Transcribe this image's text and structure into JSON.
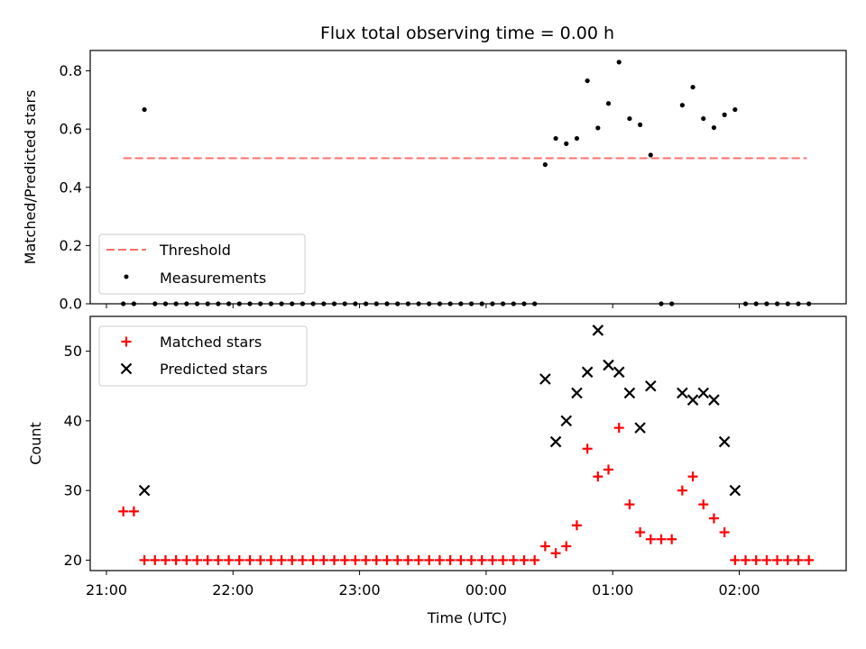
{
  "chart_data": [
    {
      "type": "scatter",
      "panel": "top",
      "title": "Flux total observing time = 0.00 h",
      "ylabel": "Matched/Predicted stars",
      "ylim": [
        0,
        0.87
      ],
      "yticks": [
        "0.0",
        "0.2",
        "0.4",
        "0.6",
        "0.8"
      ],
      "legend": {
        "placement": "lower-left",
        "entries": [
          "Threshold",
          "Measurements"
        ]
      },
      "threshold": {
        "name": "Threshold",
        "color": "#ff6f6f",
        "x_start": "21:08",
        "x_end": "02:32",
        "y": 0.5
      },
      "series": [
        {
          "name": "Measurements",
          "marker": "dot",
          "color": "#000000",
          "points": [
            [
              "21:08",
              0
            ],
            [
              "21:13",
              0
            ],
            [
              "21:18",
              0.667
            ],
            [
              "21:23",
              0
            ],
            [
              "21:28",
              0
            ],
            [
              "21:33",
              0
            ],
            [
              "21:38",
              0
            ],
            [
              "21:43",
              0
            ],
            [
              "21:48",
              0
            ],
            [
              "21:53",
              0
            ],
            [
              "21:58",
              0
            ],
            [
              "22:03",
              0
            ],
            [
              "22:08",
              0
            ],
            [
              "22:13",
              0
            ],
            [
              "22:18",
              0
            ],
            [
              "22:23",
              0
            ],
            [
              "22:28",
              0
            ],
            [
              "22:33",
              0
            ],
            [
              "22:38",
              0
            ],
            [
              "22:43",
              0
            ],
            [
              "22:48",
              0
            ],
            [
              "22:53",
              0
            ],
            [
              "22:58",
              0
            ],
            [
              "23:03",
              0
            ],
            [
              "23:08",
              0
            ],
            [
              "23:13",
              0
            ],
            [
              "23:18",
              0
            ],
            [
              "23:23",
              0
            ],
            [
              "23:28",
              0
            ],
            [
              "23:33",
              0
            ],
            [
              "23:38",
              0
            ],
            [
              "23:43",
              0
            ],
            [
              "23:48",
              0
            ],
            [
              "23:53",
              0
            ],
            [
              "23:58",
              0
            ],
            [
              "00:03",
              0
            ],
            [
              "00:08",
              0
            ],
            [
              "00:13",
              0
            ],
            [
              "00:18",
              0
            ],
            [
              "00:23",
              0
            ],
            [
              "00:28",
              0.478
            ],
            [
              "00:33",
              0.568
            ],
            [
              "00:38",
              0.55
            ],
            [
              "00:43",
              0.568
            ],
            [
              "00:48",
              0.766
            ],
            [
              "00:53",
              0.604
            ],
            [
              "00:58",
              0.688
            ],
            [
              "01:03",
              0.83
            ],
            [
              "01:08",
              0.636
            ],
            [
              "01:13",
              0.615
            ],
            [
              "01:18",
              0.511
            ],
            [
              "01:23",
              0
            ],
            [
              "01:28",
              0
            ],
            [
              "01:33",
              0.682
            ],
            [
              "01:38",
              0.744
            ],
            [
              "01:43",
              0.636
            ],
            [
              "01:48",
              0.605
            ],
            [
              "01:53",
              0.649
            ],
            [
              "01:58",
              0.667
            ],
            [
              "02:03",
              0
            ],
            [
              "02:08",
              0
            ],
            [
              "02:13",
              0
            ],
            [
              "02:18",
              0
            ],
            [
              "02:23",
              0
            ],
            [
              "02:28",
              0
            ],
            [
              "02:33",
              0
            ]
          ]
        }
      ]
    },
    {
      "type": "scatter",
      "panel": "bottom",
      "xlabel": "Time (UTC)",
      "ylabel": "Count",
      "ylim": [
        18.5,
        55
      ],
      "yticks": [
        "20",
        "30",
        "40",
        "50"
      ],
      "xticks": [
        "21:00",
        "22:00",
        "23:00",
        "00:00",
        "01:00",
        "02:00"
      ],
      "legend": {
        "placement": "upper-left",
        "entries": [
          "Matched stars",
          "Predicted stars"
        ]
      },
      "series": [
        {
          "name": "Matched stars",
          "marker": "plus",
          "color": "#ff0000",
          "points": [
            [
              "21:08",
              27
            ],
            [
              "21:13",
              27
            ],
            [
              "21:18",
              20
            ],
            [
              "21:23",
              20
            ],
            [
              "21:28",
              20
            ],
            [
              "21:33",
              20
            ],
            [
              "21:38",
              20
            ],
            [
              "21:43",
              20
            ],
            [
              "21:48",
              20
            ],
            [
              "21:53",
              20
            ],
            [
              "21:58",
              20
            ],
            [
              "22:03",
              20
            ],
            [
              "22:08",
              20
            ],
            [
              "22:13",
              20
            ],
            [
              "22:18",
              20
            ],
            [
              "22:23",
              20
            ],
            [
              "22:28",
              20
            ],
            [
              "22:33",
              20
            ],
            [
              "22:38",
              20
            ],
            [
              "22:43",
              20
            ],
            [
              "22:48",
              20
            ],
            [
              "22:53",
              20
            ],
            [
              "22:58",
              20
            ],
            [
              "23:03",
              20
            ],
            [
              "23:08",
              20
            ],
            [
              "23:13",
              20
            ],
            [
              "23:18",
              20
            ],
            [
              "23:23",
              20
            ],
            [
              "23:28",
              20
            ],
            [
              "23:33",
              20
            ],
            [
              "23:38",
              20
            ],
            [
              "23:43",
              20
            ],
            [
              "23:48",
              20
            ],
            [
              "23:53",
              20
            ],
            [
              "23:58",
              20
            ],
            [
              "00:03",
              20
            ],
            [
              "00:08",
              20
            ],
            [
              "00:13",
              20
            ],
            [
              "00:18",
              20
            ],
            [
              "00:23",
              20
            ],
            [
              "00:28",
              22
            ],
            [
              "00:33",
              21
            ],
            [
              "00:38",
              22
            ],
            [
              "00:43",
              25
            ],
            [
              "00:48",
              36
            ],
            [
              "00:53",
              32
            ],
            [
              "00:58",
              33
            ],
            [
              "01:03",
              39
            ],
            [
              "01:08",
              28
            ],
            [
              "01:13",
              24
            ],
            [
              "01:18",
              23
            ],
            [
              "01:23",
              23
            ],
            [
              "01:28",
              23
            ],
            [
              "01:33",
              30
            ],
            [
              "01:38",
              32
            ],
            [
              "01:43",
              28
            ],
            [
              "01:48",
              26
            ],
            [
              "01:53",
              24
            ],
            [
              "01:58",
              20
            ],
            [
              "02:03",
              20
            ],
            [
              "02:08",
              20
            ],
            [
              "02:13",
              20
            ],
            [
              "02:18",
              20
            ],
            [
              "02:23",
              20
            ],
            [
              "02:28",
              20
            ],
            [
              "02:33",
              20
            ]
          ]
        },
        {
          "name": "Predicted stars",
          "marker": "x",
          "color": "#000000",
          "points": [
            [
              "21:18",
              30
            ],
            [
              "00:28",
              46
            ],
            [
              "00:33",
              37
            ],
            [
              "00:38",
              40
            ],
            [
              "00:43",
              44
            ],
            [
              "00:48",
              47
            ],
            [
              "00:53",
              53
            ],
            [
              "00:58",
              48
            ],
            [
              "01:03",
              47
            ],
            [
              "01:08",
              44
            ],
            [
              "01:13",
              39
            ],
            [
              "01:18",
              45
            ],
            [
              "01:33",
              44
            ],
            [
              "01:38",
              43
            ],
            [
              "01:43",
              44
            ],
            [
              "01:48",
              43
            ],
            [
              "01:53",
              37
            ],
            [
              "01:58",
              30
            ]
          ]
        }
      ]
    }
  ]
}
